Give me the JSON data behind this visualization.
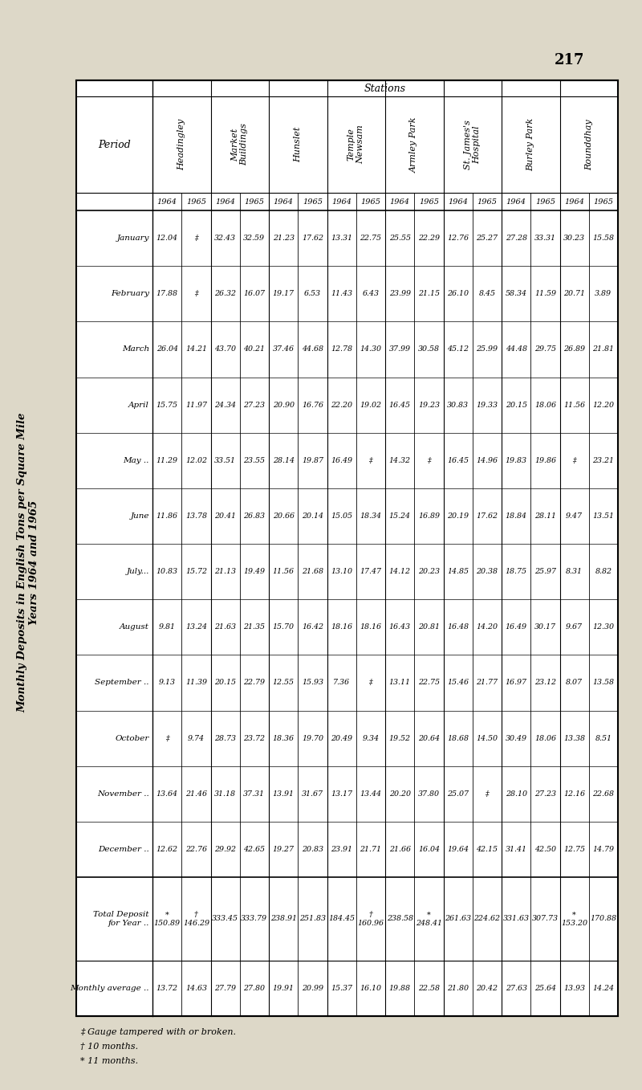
{
  "title_line1": "Monthly Deposits in English Tons per Square Mile",
  "title_line2": "Years 1964 and 1965",
  "page_number": "217",
  "footnotes": [
    "‡ Gauge tampered with or broken.",
    "† 10 months.",
    "* 11 months."
  ],
  "station_names": [
    "Headingley",
    "Market\nBuildings",
    "Hunslet",
    "Temple\nNewsam",
    "Armley Park",
    "St. James's\nHospital",
    "Burley Park",
    "Rounddhay"
  ],
  "years": [
    "1964",
    "1965"
  ],
  "period_labels": [
    "January",
    "February",
    "March",
    "April",
    "May ..",
    "June",
    "July...",
    "August",
    "September ..",
    "October",
    "November ..",
    "December ..",
    "Total Deposit\nfor Year ..",
    "Monthly average .."
  ],
  "rows": [
    [
      "12.04",
      "‡",
      "32.43",
      "32.59",
      "21.23",
      "17.62",
      "13.31",
      "22.75",
      "25.55",
      "22.29",
      "12.76",
      "25.27",
      "27.28",
      "33.31",
      "30.23",
      "15.58"
    ],
    [
      "17.88",
      "‡",
      "26.32",
      "16.07",
      "19.17",
      "6.53",
      "11.43",
      "6.43",
      "23.99",
      "21.15",
      "26.10",
      "8.45",
      "58.34",
      "11.59",
      "20.71",
      "3.89"
    ],
    [
      "26.04",
      "14.21",
      "43.70",
      "40.21",
      "37.46",
      "44.68",
      "12.78",
      "14.30",
      "37.99",
      "30.58",
      "45.12",
      "25.99",
      "44.48",
      "29.75",
      "26.89",
      "21.81"
    ],
    [
      "15.75",
      "11.97",
      "24.34",
      "27.23",
      "20.90",
      "16.76",
      "22.20",
      "19.02",
      "16.45",
      "19.23",
      "30.83",
      "19.33",
      "20.15",
      "18.06",
      "11.56",
      "12.20"
    ],
    [
      "11.29",
      "12.02",
      "33.51",
      "23.55",
      "28.14",
      "19.87",
      "16.49",
      "‡",
      "14.32",
      "‡",
      "16.45",
      "14.96",
      "19.83",
      "19.86",
      "‡",
      "23.21"
    ],
    [
      "11.86",
      "13.78",
      "20.41",
      "26.83",
      "20.66",
      "20.14",
      "15.05",
      "18.34",
      "15.24",
      "16.89",
      "20.19",
      "17.62",
      "18.84",
      "28.11",
      "9.47",
      "13.51"
    ],
    [
      "10.83",
      "15.72",
      "21.13",
      "19.49",
      "11.56",
      "21.68",
      "13.10",
      "17.47",
      "14.12",
      "20.23",
      "14.85",
      "20.38",
      "18.75",
      "25.97",
      "8.31",
      "8.82"
    ],
    [
      "9.81",
      "13.24",
      "21.63",
      "21.35",
      "15.70",
      "16.42",
      "18.16",
      "18.16",
      "16.43",
      "20.81",
      "16.48",
      "14.20",
      "16.49",
      "30.17",
      "9.67",
      "12.30"
    ],
    [
      "9.13",
      "11.39",
      "20.15",
      "22.79",
      "12.55",
      "15.93",
      "7.36",
      "‡",
      "13.11",
      "22.75",
      "15.46",
      "21.77",
      "16.97",
      "23.12",
      "8.07",
      "13.58"
    ],
    [
      "‡",
      "9.74",
      "28.73",
      "23.72",
      "18.36",
      "19.70",
      "20.49",
      "9.34",
      "19.52",
      "20.64",
      "18.68",
      "14.50",
      "30.49",
      "18.06",
      "13.38",
      "8.51"
    ],
    [
      "13.64",
      "21.46",
      "31.18",
      "37.31",
      "13.91",
      "31.67",
      "13.17",
      "13.44",
      "20.20",
      "37.80",
      "25.07",
      "‡",
      "28.10",
      "27.23",
      "12.16",
      "22.68"
    ],
    [
      "12.62",
      "22.76",
      "29.92",
      "42.65",
      "19.27",
      "20.83",
      "23.91",
      "21.71",
      "21.66",
      "16.04",
      "19.64",
      "42.15",
      "31.41",
      "42.50",
      "12.75",
      "14.79"
    ],
    [
      "*\n150.89",
      "†\n146.29",
      "333.45",
      "333.79",
      "238.91",
      "251.83",
      "184.45",
      "†\n160.96",
      "238.58",
      "*\n248.41",
      "261.63",
      "224.62",
      "331.63",
      "307.73",
      "*\n153.20",
      "170.88"
    ],
    [
      "13.72",
      "14.63",
      "27.79",
      "27.80",
      "19.91",
      "20.99",
      "15.37",
      "16.10",
      "19.88",
      "22.58",
      "21.80",
      "20.42",
      "27.63",
      "25.64",
      "13.93",
      "14.24"
    ]
  ],
  "bg_color": "#ddd8c8",
  "table_bg": "#ffffff",
  "text_color": "#000000"
}
